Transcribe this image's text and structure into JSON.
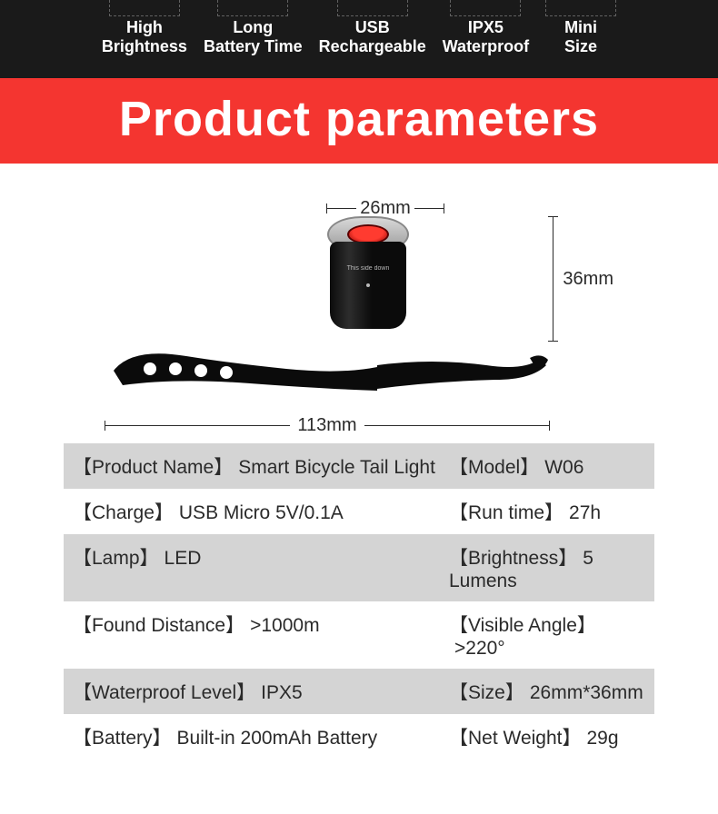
{
  "features": [
    {
      "line1": "High",
      "line2": "Brightness"
    },
    {
      "line1": "Long",
      "line2": "Battery Time"
    },
    {
      "line1": "USB",
      "line2": "Rechargeable"
    },
    {
      "line1": "IPX5",
      "line2": "Waterproof"
    },
    {
      "line1": "Mini",
      "line2": "Size"
    }
  ],
  "header_title": "Product parameters",
  "dimensions": {
    "width": "26mm",
    "height": "36mm",
    "strap_length": "113mm"
  },
  "specs": [
    {
      "left_key": "Product Name",
      "left_val": "Smart Bicycle Tail Light",
      "right_key": "Model",
      "right_val": "W06",
      "shade": true
    },
    {
      "left_key": "Charge",
      "left_val": "USB Micro 5V/0.1A",
      "right_key": "Run time",
      "right_val": "27h",
      "shade": false
    },
    {
      "left_key": "Lamp",
      "left_val": "LED",
      "right_key": "Brightness",
      "right_val": "5 Lumens",
      "shade": true
    },
    {
      "left_key": "Found Distance",
      "left_val": ">1000m",
      "right_key": "Visible Angle",
      "right_val": ">220°",
      "shade": false
    },
    {
      "left_key": "Waterproof Level",
      "left_val": "IPX5",
      "right_key": "Size",
      "right_val": "26mm*36mm",
      "shade": true
    },
    {
      "left_key": "Battery",
      "left_val": "Built-in 200mAh Battery",
      "right_key": "Net Weight",
      "right_val": "29g",
      "shade": false
    }
  ],
  "colors": {
    "header_bg": "#f43530",
    "header_text": "#ffffff",
    "features_bg": "#1a1a1a",
    "shade_row": "#d4d4d4",
    "text": "#2a2a2a"
  }
}
